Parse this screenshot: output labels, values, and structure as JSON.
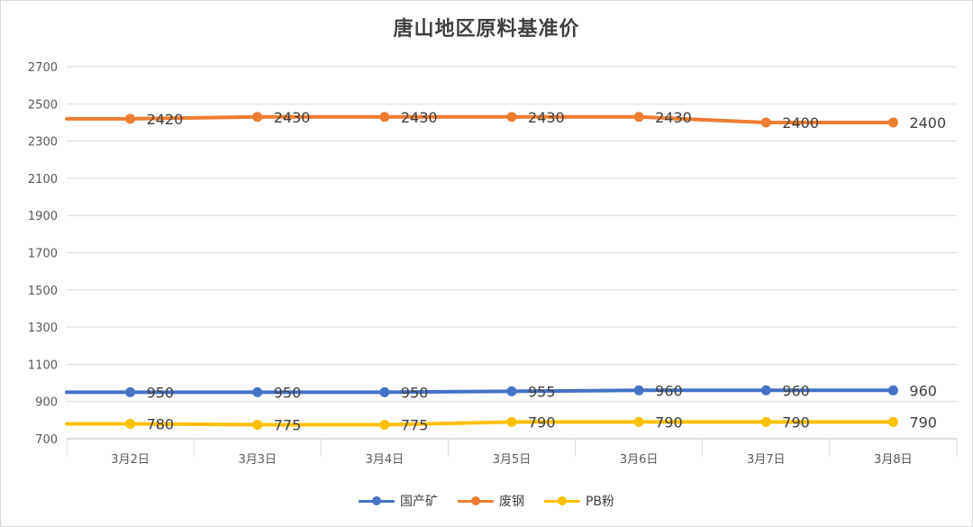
{
  "chart_data": {
    "type": "line",
    "title": "唐山地区原料基准价",
    "xlabel": "",
    "ylabel": "",
    "categories": [
      "3月2日",
      "3月3日",
      "3月4日",
      "3月5日",
      "3月6日",
      "3月7日",
      "3月8日"
    ],
    "y_ticks": [
      "700",
      "900",
      "1100",
      "1300",
      "1500",
      "1700",
      "1900",
      "2100",
      "2300",
      "2500",
      "2700"
    ],
    "ylim": [
      700,
      2700
    ],
    "grid": true,
    "legend_position": "bottom",
    "series": [
      {
        "name": "国产矿",
        "color": "#4472C4",
        "values": [
          950,
          950,
          950,
          955,
          960,
          960,
          960
        ],
        "labels": [
          "950",
          "950",
          "950",
          "955",
          "960",
          "960",
          "960"
        ]
      },
      {
        "name": "废钢",
        "color": "#ED7D31",
        "values": [
          2420,
          2430,
          2430,
          2430,
          2430,
          2400,
          2400
        ],
        "labels": [
          "2420",
          "2430",
          "2430",
          "2430",
          "2430",
          "2400",
          "2400"
        ]
      },
      {
        "name": "PB粉",
        "color": "#FFC000",
        "values": [
          780,
          775,
          775,
          790,
          790,
          790,
          790
        ],
        "labels": [
          "780",
          "775",
          "775",
          "790",
          "790",
          "790",
          "790"
        ]
      }
    ]
  }
}
